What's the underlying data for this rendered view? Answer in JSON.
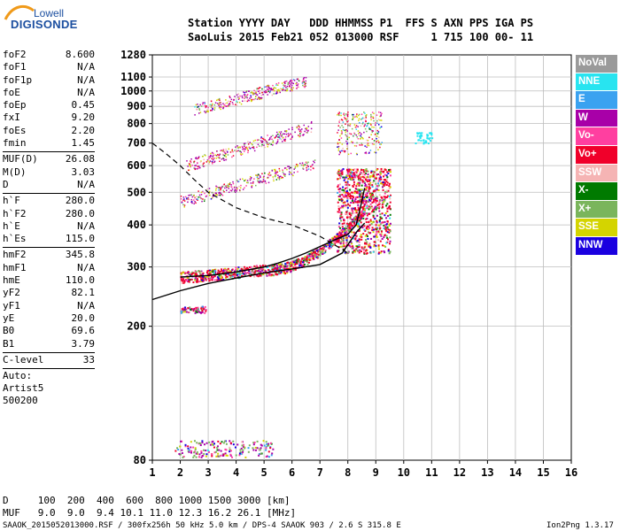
{
  "logo": {
    "line1": "Lowell",
    "line2": "DIGISONDE"
  },
  "header": {
    "row1": "Station YYYY DAY   DDD HHMMSS P1  FFS S AXN PPS IGA PS",
    "row2": "SaoLuis 2015 Feb21 052 013000 RSF     1 715 100 00- 11"
  },
  "params": {
    "groups": [
      [
        {
          "name": "foF2",
          "value": "8.600"
        },
        {
          "name": "foF1",
          "value": "N/A"
        },
        {
          "name": "foF1p",
          "value": "N/A"
        },
        {
          "name": "foE",
          "value": "N/A"
        },
        {
          "name": "foEp",
          "value": "0.45"
        },
        {
          "name": "fxI",
          "value": "9.20"
        },
        {
          "name": "foEs",
          "value": "2.20"
        },
        {
          "name": "fmin",
          "value": "1.45"
        }
      ],
      [
        {
          "name": "MUF(D)",
          "value": "26.08"
        },
        {
          "name": "M(D)",
          "value": "3.03"
        },
        {
          "name": "D",
          "value": "N/A"
        }
      ],
      [
        {
          "name": "h`F",
          "value": "280.0"
        },
        {
          "name": "h`F2",
          "value": "280.0"
        },
        {
          "name": "h`E",
          "value": "N/A"
        },
        {
          "name": "h`Es",
          "value": "115.0"
        }
      ],
      [
        {
          "name": "hmF2",
          "value": "345.8"
        },
        {
          "name": "hmF1",
          "value": "N/A"
        },
        {
          "name": "hmE",
          "value": "110.0"
        },
        {
          "name": "yF2",
          "value": "82.1"
        },
        {
          "name": "yF1",
          "value": "N/A"
        },
        {
          "name": "yE",
          "value": "20.0"
        },
        {
          "name": "B0",
          "value": "69.6"
        },
        {
          "name": "B1",
          "value": "3.79"
        }
      ],
      [
        {
          "name": "C-level",
          "value": "33"
        }
      ]
    ],
    "auto_lines": [
      "Auto:",
      "Artist5",
      "500200"
    ]
  },
  "legend": [
    {
      "label": "NoVal",
      "color": "#9a9a9a"
    },
    {
      "label": "NNE",
      "color": "#28e4f0"
    },
    {
      "label": "E",
      "color": "#3aa2f0"
    },
    {
      "label": "W",
      "color": "#a800a8"
    },
    {
      "label": "Vo-",
      "color": "#ff3fa0"
    },
    {
      "label": "Vo+",
      "color": "#f0002a"
    },
    {
      "label": "SSW",
      "color": "#f5b4b4"
    },
    {
      "label": "X-",
      "color": "#007a00"
    },
    {
      "label": "X+",
      "color": "#7ab55c"
    },
    {
      "label": "SSE",
      "color": "#d4d400"
    },
    {
      "label": "NNW",
      "color": "#1a00e0"
    }
  ],
  "footer": {
    "d_row": "D     100  200  400  600  800 1000 1500 3000 [km]",
    "muf_row": "MUF   9.0  9.0  9.4 10.1 11.0 12.3 16.2 26.1 [MHz]",
    "file_line": "SAAOK_2015052013000.RSF / 300fx256h 50 kHz 5.0 km / DPS-4 SAAOK 903 / 2.6 S 315.8 E",
    "version": "Ion2Png 1.3.17"
  },
  "chart_data": {
    "type": "scatter",
    "title": "",
    "xlabel": "",
    "ylabel": "",
    "xlim": [
      1,
      16
    ],
    "ylim": [
      80,
      1280
    ],
    "y_scale": "log",
    "grid": true,
    "x_ticks": [
      1,
      2,
      3,
      4,
      5,
      6,
      7,
      8,
      9,
      10,
      11,
      12,
      13,
      14,
      15,
      16
    ],
    "y_ticks": [
      80,
      200,
      300,
      400,
      500,
      600,
      700,
      800,
      900,
      1000,
      1100,
      1280
    ],
    "traces": [
      {
        "name": "profile",
        "style": "solid",
        "x": [
          1.0,
          2.0,
          3.0,
          4.0,
          5.0,
          6.0,
          7.0,
          7.8,
          8.3,
          8.6
        ],
        "y": [
          240,
          255,
          268,
          278,
          288,
          296,
          305,
          330,
          380,
          405
        ]
      },
      {
        "name": "trace",
        "style": "solid",
        "x": [
          2.0,
          3.0,
          4.0,
          5.0,
          5.5,
          6.0,
          6.5,
          7.0,
          7.5,
          8.0,
          8.3,
          8.5,
          8.6
        ],
        "y": [
          280,
          283,
          290,
          300,
          308,
          318,
          330,
          345,
          360,
          375,
          400,
          470,
          515
        ]
      },
      {
        "name": "muf",
        "style": "dashed",
        "x": [
          1.0,
          1.5,
          2.0,
          2.5,
          3.0,
          4.0,
          5.0,
          6.0,
          7.0,
          7.5,
          8.0
        ],
        "y": [
          700,
          650,
          600,
          545,
          500,
          450,
          420,
          400,
          370,
          350,
          330
        ]
      }
    ]
  }
}
